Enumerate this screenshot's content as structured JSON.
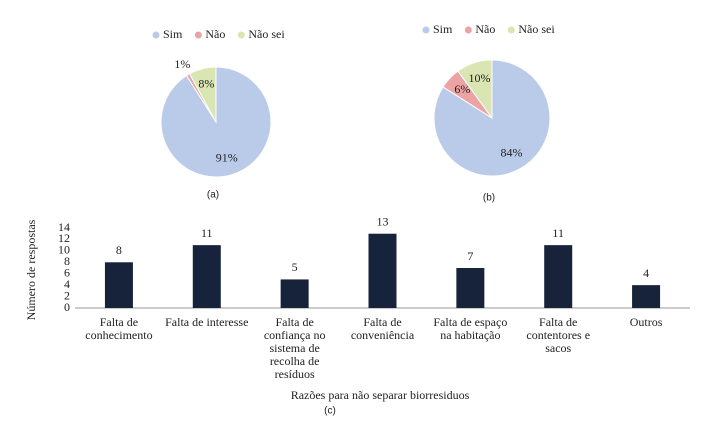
{
  "chart_data": [
    {
      "type": "pie",
      "caption": "(a)",
      "categories": [
        "Sim",
        "Não",
        "Não sei"
      ],
      "values": [
        91,
        1,
        8
      ],
      "value_labels": [
        "91%",
        "1%",
        "8%"
      ],
      "colors": [
        "#b9cbe9",
        "#eba3a3",
        "#d9e5b3"
      ]
    },
    {
      "type": "pie",
      "caption": "(b)",
      "categories": [
        "Sim",
        "Não",
        "Não sei"
      ],
      "values": [
        84,
        6,
        10
      ],
      "value_labels": [
        "84%",
        "6%",
        "10%"
      ],
      "colors": [
        "#b9cbe9",
        "#eba3a3",
        "#d9e5b3"
      ]
    },
    {
      "type": "bar",
      "caption": "(c)",
      "x_label": "Razões para não separar biorresiduos",
      "y_label": "Número de respostas",
      "categories": [
        "Falta de conhecimento",
        "Falta de interesse",
        "Falta de confiança no sistema de recolha de resíduos",
        "Falta de conveniência",
        "Falta de espaço na habitação",
        "Falta de contentores e sacos",
        "Outros"
      ],
      "values": [
        8,
        11,
        5,
        13,
        7,
        11,
        4
      ],
      "color": "#17233b",
      "data_labels": true,
      "ylim": [
        0,
        14
      ],
      "yticks": [
        0,
        2,
        4,
        6,
        8,
        10,
        12,
        14
      ]
    }
  ]
}
